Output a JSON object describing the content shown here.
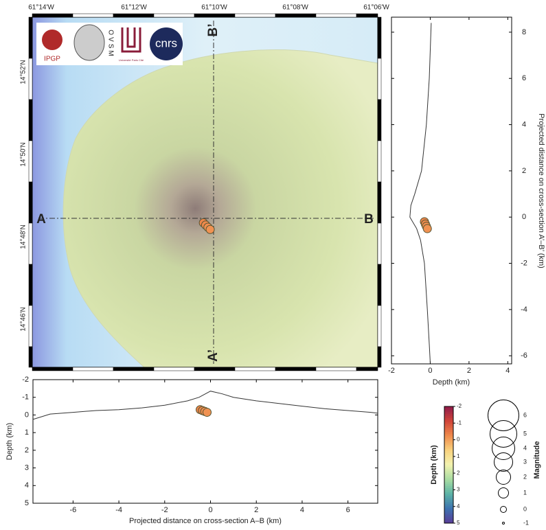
{
  "map": {
    "lon_ticks": [
      "61°14'W",
      "61°12'W",
      "61°10'W",
      "61°08'W",
      "61°06'W"
    ],
    "lat_ticks": [
      "14°52'N",
      "14°50'N",
      "14°48'N",
      "14°46'N"
    ],
    "section_labels": {
      "a": "A",
      "b": "B",
      "a2": "A’",
      "b2": "B’"
    },
    "logos": [
      "IPGP",
      "OVSM",
      "Université Paris Cité",
      "cnrs"
    ]
  },
  "events": [
    {
      "distance_ab": -0.45,
      "distance_a2b2": -0.2,
      "depth": -0.3,
      "magnitude": 0.5
    },
    {
      "distance_ab": -0.35,
      "distance_a2b2": -0.3,
      "depth": -0.25,
      "magnitude": 0.5
    },
    {
      "distance_ab": -0.25,
      "distance_a2b2": -0.4,
      "depth": -0.2,
      "magnitude": 0.5
    },
    {
      "distance_ab": -0.15,
      "distance_a2b2": -0.5,
      "depth": -0.15,
      "magnitude": 0.5
    }
  ],
  "section_ab": {
    "xlabel": "Projected distance on cross-section A–B (km)",
    "ylabel": "Depth (km)",
    "xlim": [
      -7.75,
      7.3
    ],
    "ylim": [
      -2,
      5
    ],
    "xticks": [
      -6,
      -4,
      -2,
      0,
      2,
      4,
      6
    ],
    "yticks": [
      -2,
      -1,
      0,
      1,
      2,
      3,
      4,
      5
    ],
    "profile_x": [
      -7.75,
      -7,
      -6,
      -5,
      -4,
      -3,
      -2,
      -1,
      -0.5,
      0,
      0.5,
      1,
      2,
      3,
      4,
      5,
      6,
      7,
      7.3
    ],
    "profile_depth": [
      0.25,
      -0.05,
      -0.15,
      -0.25,
      -0.3,
      -0.4,
      -0.55,
      -0.8,
      -1.0,
      -1.35,
      -1.2,
      -1.0,
      -0.8,
      -0.65,
      -0.5,
      -0.35,
      -0.25,
      -0.15,
      -0.1
    ]
  },
  "section_a2b2": {
    "xlabel": "Depth (km)",
    "ylabel": "Projected distance on cross-section A’–B’ (km)",
    "xlim": [
      -2,
      4.2
    ],
    "ylim": [
      -6.35,
      8.65
    ],
    "xticks": [
      -2,
      0,
      2,
      4
    ],
    "yticks": [
      -6,
      -4,
      -2,
      0,
      2,
      4,
      6,
      8
    ],
    "profile_y": [
      8.4,
      6,
      4,
      2,
      1,
      0.5,
      0,
      -0.5,
      -1,
      -2,
      -4,
      -5.5,
      -6.3
    ],
    "profile_depth": [
      0.05,
      -0.05,
      -0.2,
      -0.45,
      -0.8,
      -1.0,
      -1.05,
      -0.7,
      -0.5,
      -0.3,
      -0.15,
      -0.05,
      0
    ]
  },
  "colorbar": {
    "label": "Depth (km)",
    "lim": [
      -2,
      5
    ],
    "ticks": [
      -2,
      -1,
      0,
      1,
      2,
      3,
      4,
      5
    ],
    "colors": [
      "#8e1b4a",
      "#d0443a",
      "#ef8a4c",
      "#f9d27e",
      "#f3f3b0",
      "#a9dca2",
      "#5cb3a6",
      "#3d73b0",
      "#5a3d98"
    ]
  },
  "magnitude_legend": {
    "label": "Magnitude",
    "values": [
      6,
      5,
      4,
      3,
      2,
      1,
      0,
      -1
    ]
  }
}
